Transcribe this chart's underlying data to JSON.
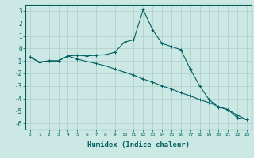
{
  "xlabel": "Humidex (Indice chaleur)",
  "background_color": "#cce8e4",
  "grid_color": "#b0ccca",
  "line_color": "#006060",
  "x_data": [
    0,
    1,
    2,
    3,
    4,
    5,
    6,
    7,
    8,
    9,
    10,
    11,
    12,
    13,
    14,
    15,
    16,
    17,
    18,
    19,
    20,
    21,
    22,
    23
  ],
  "line1_y": [
    -0.7,
    -1.1,
    -1.0,
    -1.0,
    -0.6,
    -0.55,
    -0.6,
    -0.55,
    -0.5,
    -0.3,
    0.5,
    0.7,
    3.1,
    1.5,
    0.4,
    0.15,
    -0.1,
    -1.65,
    -3.0,
    -4.1,
    -4.7,
    -4.9,
    -5.55,
    -5.7
  ],
  "line2_y": [
    -0.7,
    -1.1,
    -1.0,
    -1.0,
    -0.6,
    -0.85,
    -1.05,
    -1.2,
    -1.4,
    -1.65,
    -1.9,
    -2.15,
    -2.45,
    -2.7,
    -3.0,
    -3.25,
    -3.55,
    -3.8,
    -4.1,
    -4.35,
    -4.65,
    -4.9,
    -5.35,
    -5.7
  ],
  "ylim": [
    -6.5,
    3.5
  ],
  "xlim": [
    -0.5,
    23.5
  ],
  "yticks": [
    3,
    2,
    1,
    0,
    -1,
    -2,
    -3,
    -4,
    -5,
    -6
  ]
}
